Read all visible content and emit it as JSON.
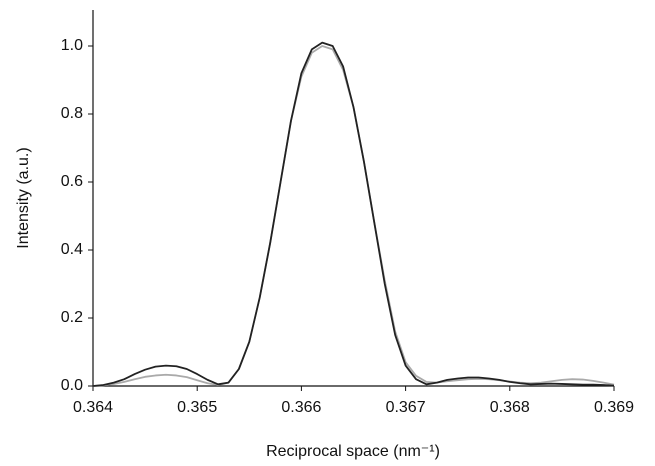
{
  "chart_data": {
    "type": "line",
    "xlabel": "Reciprocal space (nm⁻¹)",
    "ylabel": "Intensity (a.u.)",
    "x": [
      0.364,
      0.3641,
      0.3642,
      0.3643,
      0.3644,
      0.3645,
      0.3646,
      0.3647,
      0.3648,
      0.3649,
      0.365,
      0.3651,
      0.3652,
      0.3653,
      0.3654,
      0.3655,
      0.3656,
      0.3657,
      0.3658,
      0.3659,
      0.366,
      0.3661,
      0.3662,
      0.3663,
      0.3664,
      0.3665,
      0.3666,
      0.3667,
      0.3668,
      0.3669,
      0.367,
      0.3671,
      0.3672,
      0.3673,
      0.3674,
      0.3675,
      0.3676,
      0.3677,
      0.3678,
      0.3679,
      0.368,
      0.3681,
      0.3682,
      0.3683,
      0.3684,
      0.3685,
      0.3686,
      0.3687,
      0.3688,
      0.3689,
      0.369
    ],
    "series": [
      {
        "color": "#aaaaaa",
        "values": [
          0.0,
          0.002,
          0.006,
          0.012,
          0.02,
          0.027,
          0.031,
          0.033,
          0.031,
          0.026,
          0.017,
          0.008,
          0.003,
          0.01,
          0.05,
          0.13,
          0.26,
          0.42,
          0.6,
          0.78,
          0.91,
          0.98,
          1.0,
          0.99,
          0.93,
          0.82,
          0.66,
          0.48,
          0.31,
          0.16,
          0.07,
          0.03,
          0.012,
          0.01,
          0.014,
          0.017,
          0.02,
          0.021,
          0.02,
          0.017,
          0.013,
          0.01,
          0.008,
          0.01,
          0.014,
          0.018,
          0.02,
          0.019,
          0.015,
          0.01,
          0.004
        ]
      },
      {
        "color": "#222222",
        "values": [
          0.0,
          0.003,
          0.01,
          0.02,
          0.035,
          0.048,
          0.057,
          0.06,
          0.058,
          0.05,
          0.035,
          0.018,
          0.005,
          0.01,
          0.05,
          0.13,
          0.26,
          0.42,
          0.6,
          0.78,
          0.92,
          0.99,
          1.01,
          1.0,
          0.94,
          0.82,
          0.66,
          0.48,
          0.3,
          0.15,
          0.06,
          0.02,
          0.005,
          0.01,
          0.018,
          0.022,
          0.025,
          0.025,
          0.022,
          0.018,
          0.012,
          0.008,
          0.005,
          0.006,
          0.007,
          0.006,
          0.005,
          0.004,
          0.004,
          0.003,
          0.001
        ]
      }
    ],
    "xlim": [
      0.364,
      0.369
    ],
    "ylim": [
      0,
      1.1
    ],
    "xticks": [
      0.364,
      0.365,
      0.366,
      0.367,
      0.368,
      0.369
    ],
    "yticks": [
      {
        "value": 0,
        "label": "0.0"
      },
      0.2,
      0.4,
      0.6,
      0.8,
      {
        "value": 1,
        "label": "1.0"
      }
    ],
    "grid": false
  }
}
